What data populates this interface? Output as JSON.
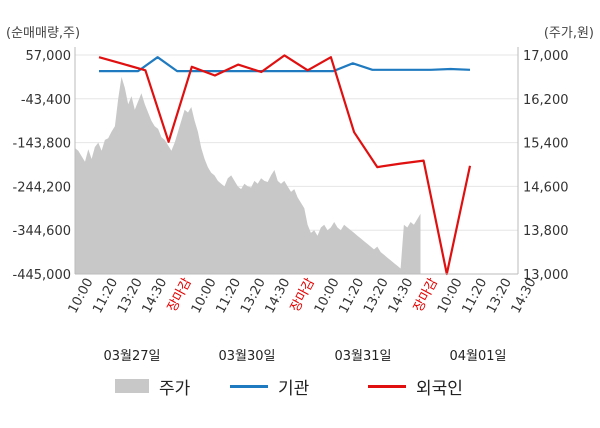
{
  "chart_data": {
    "type": "line",
    "left_axis_unit": "(순매매량,주)",
    "right_axis_unit": "(주가,원)",
    "left_ticks": [
      "57,000",
      "-43,400",
      "-143,800",
      "-244,200",
      "-344,600",
      "-445,000"
    ],
    "right_ticks": [
      "17,000",
      "16,200",
      "15,400",
      "14,600",
      "13,800",
      "13,000"
    ],
    "ylim_left": [
      -445000,
      57000
    ],
    "ylim_right": [
      13000,
      17000
    ],
    "x_tick_labels": [
      "10:00",
      "11:20",
      "13:20",
      "14:30",
      "장마감",
      "10:00",
      "11:20",
      "13:20",
      "14:30",
      "장마감",
      "10:00",
      "11:20",
      "13:20",
      "14:30",
      "장마감",
      "10:00",
      "11:20",
      "13:20",
      "14:30"
    ],
    "date_labels": [
      "03월27일",
      "03월30일",
      "03월31일",
      "04월01일"
    ],
    "series": [
      {
        "name": "주가",
        "kind": "area",
        "color": "#c8c8c8",
        "values": [
          15300,
          15250,
          15150,
          15050,
          15280,
          15100,
          15320,
          15400,
          15250,
          15450,
          15480,
          15600,
          15700,
          16200,
          16600,
          16400,
          16100,
          16250,
          16000,
          16150,
          16300,
          16100,
          15950,
          15800,
          15700,
          15650,
          15500,
          15450,
          15350,
          15250,
          15400,
          15600,
          15800,
          16000,
          15950,
          16050,
          15800,
          15600,
          15300,
          15100,
          14950,
          14850,
          14800,
          14700,
          14650,
          14600,
          14750,
          14800,
          14700,
          14600,
          14550,
          14650,
          14600,
          14580,
          14700,
          14650,
          14750,
          14700,
          14680,
          14800,
          14900,
          14700,
          14650,
          14700,
          14600,
          14500,
          14550,
          14400,
          14300,
          14200,
          13900,
          13750,
          13800,
          13700,
          13850,
          13900,
          13800,
          13850,
          13950,
          13850,
          13800,
          13900,
          13850,
          13800,
          13750,
          13700,
          13650,
          13600,
          13550,
          13500,
          13450,
          13500,
          13400,
          13350,
          13300,
          13250,
          13200,
          13150,
          13100,
          13900,
          13850,
          13950,
          13900,
          14000,
          14100
        ]
      },
      {
        "name": "기관",
        "kind": "line",
        "color": "#1f7ac0",
        "values": [
          20000,
          20000,
          20000,
          52000,
          20000,
          20000,
          20000,
          20000,
          20000,
          20000,
          20000,
          20000,
          20000,
          38000,
          23000,
          23000,
          23000,
          23000,
          25000,
          23000
        ]
      },
      {
        "name": "외국인",
        "kind": "line",
        "color": "#e01010",
        "values": [
          52000,
          37000,
          22000,
          -142000,
          30000,
          10000,
          35000,
          18000,
          56000,
          22000,
          52000,
          -120000,
          -200000,
          -192000,
          -185000,
          -445000,
          -197000
        ]
      }
    ]
  },
  "legend": [
    {
      "label": "주가",
      "color": "#c8c8c8",
      "kind": "area"
    },
    {
      "label": "기관",
      "color": "#1f7ac0",
      "kind": "line"
    },
    {
      "label": "외국인",
      "color": "#e01010",
      "kind": "line"
    }
  ]
}
